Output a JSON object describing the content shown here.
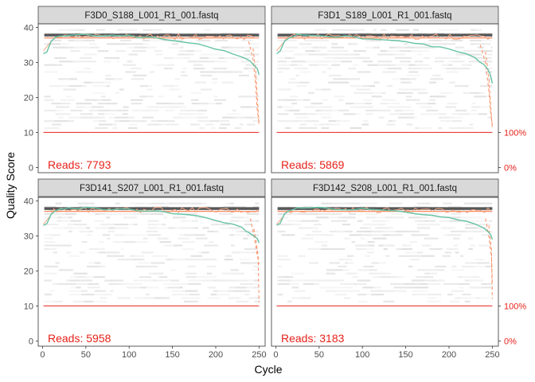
{
  "chart_data": {
    "type": "line",
    "xlabel": "Cycle",
    "ylabel": "Quality Score",
    "xlim": [
      -5,
      257
    ],
    "ylim": [
      -1.5,
      41
    ],
    "x_ticks": [
      0,
      50,
      100,
      150,
      200,
      250
    ],
    "y_ticks": [
      0,
      10,
      20,
      30,
      40
    ],
    "secondary_axis": {
      "labels": [
        "100%",
        "0%"
      ],
      "values": [
        10,
        0
      ]
    },
    "grid": false,
    "colors": {
      "mean_quality": "#66c2a5",
      "quartile": "#fc8d62",
      "median": "#f4a582",
      "cumulative": "#e8221a",
      "heatmap": "#e6e6e6",
      "strip": "#d9d9d9",
      "panel_border": "#333333"
    },
    "panels": [
      {
        "title": "F3D0_S188_L001_R1_001.fastq",
        "reads_label": "Reads:",
        "reads": "7793",
        "mean_quality": {
          "x": [
            1,
            5,
            10,
            15,
            20,
            25,
            30,
            40,
            50,
            60,
            70,
            80,
            90,
            100,
            110,
            120,
            130,
            140,
            150,
            160,
            170,
            180,
            190,
            200,
            210,
            220,
            230,
            235,
            240,
            245,
            248,
            250
          ],
          "y": [
            32.5,
            33,
            36,
            37,
            37.5,
            37.8,
            38,
            37.9,
            37.9,
            37.8,
            37.7,
            37.6,
            37.5,
            37.5,
            37.3,
            37.2,
            37,
            36.7,
            36.4,
            36,
            35.5,
            35.2,
            34.5,
            33.8,
            33.2,
            32.6,
            31.8,
            31.2,
            30.2,
            29.2,
            28,
            26.5
          ]
        },
        "quartile_low_end": [
          {
            "x": [
              238,
              243,
              246,
              248,
              250
            ],
            "y": [
              36,
              31,
              24,
              16,
              13
            ]
          },
          {
            "x": [
              243,
              246,
              248,
              250
            ],
            "y": [
              34,
              28,
              20,
              12
            ]
          }
        ],
        "cumulative": {
          "x": [
            1,
            250
          ],
          "y": [
            10,
            10
          ]
        }
      },
      {
        "title": "F3D1_S189_L001_R1_001.fastq",
        "reads_label": "Reads:",
        "reads": "5869",
        "mean_quality": {
          "x": [
            1,
            5,
            10,
            15,
            20,
            25,
            30,
            40,
            50,
            60,
            70,
            80,
            90,
            100,
            110,
            120,
            130,
            140,
            150,
            160,
            170,
            180,
            190,
            200,
            210,
            220,
            230,
            235,
            240,
            245,
            248,
            250
          ],
          "y": [
            32.5,
            33.2,
            36,
            37,
            37.5,
            37.8,
            37.9,
            37.8,
            37.7,
            37.6,
            37.4,
            37.3,
            37.1,
            37,
            36.8,
            36.6,
            36.3,
            36,
            35.7,
            35.4,
            35,
            34.6,
            34.2,
            33.6,
            33,
            32.2,
            31.2,
            30.4,
            29.6,
            28,
            26.5,
            24
          ]
        },
        "quartile_low_end": [
          {
            "x": [
              236,
              242,
              246,
              248,
              250
            ],
            "y": [
              35,
              30,
              22,
              16,
              12
            ]
          },
          {
            "x": [
              242,
              246,
              248,
              250
            ],
            "y": [
              33,
              26,
              18,
              11
            ]
          }
        ],
        "cumulative": {
          "x": [
            1,
            250
          ],
          "y": [
            10,
            10
          ]
        }
      },
      {
        "title": "F3D141_S207_L001_R1_001.fastq",
        "reads_label": "Reads:",
        "reads": "5958",
        "mean_quality": {
          "x": [
            1,
            5,
            10,
            15,
            20,
            25,
            30,
            40,
            50,
            60,
            70,
            80,
            90,
            100,
            110,
            120,
            130,
            140,
            150,
            160,
            170,
            180,
            190,
            200,
            210,
            220,
            230,
            235,
            240,
            245,
            248,
            250
          ],
          "y": [
            33,
            33.5,
            36.2,
            37.2,
            37.6,
            37.9,
            38,
            37.9,
            37.9,
            37.8,
            37.8,
            37.7,
            37.6,
            37.5,
            37.4,
            37.2,
            37,
            36.8,
            36.5,
            36.2,
            35.9,
            35.5,
            35,
            34.4,
            33.8,
            33.2,
            32.3,
            31.6,
            30.8,
            30,
            29.2,
            28
          ]
        },
        "quartile_low_end": [
          {
            "x": [
              240,
              244,
              247,
              249,
              250
            ],
            "y": [
              35,
              30,
              26,
              23,
              22
            ]
          },
          {
            "x": [
              244,
              247,
              249,
              250
            ],
            "y": [
              32,
              28,
              24,
              11
            ]
          }
        ],
        "cumulative": {
          "x": [
            1,
            250
          ],
          "y": [
            10,
            10
          ]
        }
      },
      {
        "title": "F3D142_S208_L001_R1_001.fastq",
        "reads_label": "Reads:",
        "reads": "3183",
        "mean_quality": {
          "x": [
            1,
            5,
            10,
            15,
            20,
            25,
            30,
            40,
            50,
            60,
            70,
            80,
            90,
            100,
            110,
            120,
            130,
            140,
            150,
            160,
            170,
            180,
            190,
            200,
            210,
            220,
            230,
            235,
            240,
            245,
            248,
            250
          ],
          "y": [
            33,
            33.6,
            36.3,
            37.2,
            37.6,
            37.9,
            38,
            37.9,
            37.9,
            37.8,
            37.8,
            37.7,
            37.6,
            37.6,
            37.5,
            37.4,
            37.2,
            37,
            36.8,
            36.5,
            36.2,
            35.9,
            35.5,
            35,
            34.5,
            34,
            33.4,
            32.8,
            32.2,
            31.2,
            30.2,
            29
          ]
        },
        "quartile_low_end": [
          {
            "x": [
              242,
              246,
              249,
              250
            ],
            "y": [
              35,
              30,
              24,
              17
            ]
          },
          {
            "x": [
              246,
              249,
              250
            ],
            "y": [
              33,
              26,
              12
            ]
          }
        ],
        "cumulative": {
          "x": [
            1,
            250
          ],
          "y": [
            10,
            10
          ]
        }
      }
    ]
  }
}
